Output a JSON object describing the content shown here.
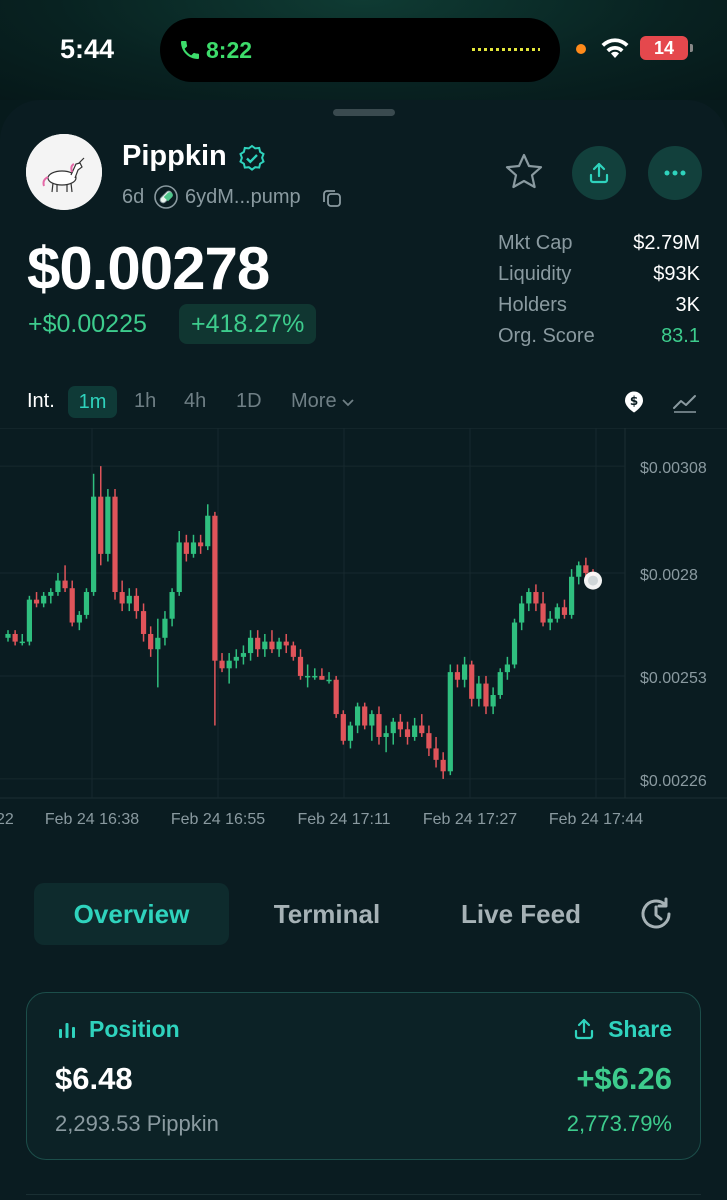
{
  "status_bar": {
    "time": "5:44",
    "call_time": "8:22",
    "battery": "14"
  },
  "token": {
    "name": "Pippkin",
    "age": "6d",
    "address": "6ydM...pump"
  },
  "price": {
    "current": "$0.00278",
    "change_abs": "+$0.00225",
    "change_pct": "+418.27%"
  },
  "stats": [
    {
      "label": "Mkt Cap",
      "value": "$2.79M",
      "highlight": false
    },
    {
      "label": "Liquidity",
      "value": "$93K",
      "highlight": false
    },
    {
      "label": "Holders",
      "value": "3K",
      "highlight": false
    },
    {
      "label": "Org. Score",
      "value": "83.1",
      "highlight": true
    }
  ],
  "intervals": {
    "label": "Int.",
    "options": [
      "1m",
      "1h",
      "4h",
      "1D"
    ],
    "active": "1m",
    "more": "More"
  },
  "chart_data": {
    "type": "candlestick",
    "y_ticks": [
      "$0.00308",
      "$0.0028",
      "$0.00253",
      "$0.00226"
    ],
    "y_tick_values": [
      0.00308,
      0.0028,
      0.00253,
      0.00226
    ],
    "x_ticks": [
      "22",
      "Feb 24 16:38",
      "Feb 24 16:55",
      "Feb 24 17:11",
      "Feb 24 17:27",
      "Feb 24 17:44"
    ],
    "ylim": [
      0.00221,
      0.00318
    ],
    "grid": true,
    "colors": {
      "up": "#2fbf7f",
      "down": "#e0545a"
    },
    "candles": [
      [
        0.00263,
        0.00265,
        0.00262,
        0.00264
      ],
      [
        0.00264,
        0.00265,
        0.00261,
        0.00262
      ],
      [
        0.00262,
        0.00264,
        0.00261,
        0.00262
      ],
      [
        0.00262,
        0.00274,
        0.00261,
        0.00273
      ],
      [
        0.00273,
        0.00275,
        0.00271,
        0.00272
      ],
      [
        0.00272,
        0.00275,
        0.00271,
        0.00274
      ],
      [
        0.00274,
        0.00276,
        0.00272,
        0.00275
      ],
      [
        0.00275,
        0.0028,
        0.00274,
        0.00278
      ],
      [
        0.00278,
        0.00282,
        0.00275,
        0.00276
      ],
      [
        0.00276,
        0.00278,
        0.00266,
        0.00267
      ],
      [
        0.00267,
        0.0027,
        0.00265,
        0.00269
      ],
      [
        0.00269,
        0.00276,
        0.00268,
        0.00275
      ],
      [
        0.00275,
        0.00306,
        0.00274,
        0.003
      ],
      [
        0.003,
        0.00308,
        0.00282,
        0.00285
      ],
      [
        0.00285,
        0.00302,
        0.00283,
        0.003
      ],
      [
        0.003,
        0.00302,
        0.00273,
        0.00275
      ],
      [
        0.00275,
        0.00278,
        0.0027,
        0.00272
      ],
      [
        0.00272,
        0.00276,
        0.0027,
        0.00274
      ],
      [
        0.00274,
        0.00276,
        0.00268,
        0.0027
      ],
      [
        0.0027,
        0.00272,
        0.00262,
        0.00264
      ],
      [
        0.00264,
        0.00266,
        0.00258,
        0.0026
      ],
      [
        0.0026,
        0.00268,
        0.0025,
        0.00263
      ],
      [
        0.00263,
        0.0027,
        0.00261,
        0.00268
      ],
      [
        0.00268,
        0.00276,
        0.00266,
        0.00275
      ],
      [
        0.00275,
        0.00291,
        0.00274,
        0.00288
      ],
      [
        0.00288,
        0.0029,
        0.00283,
        0.00285
      ],
      [
        0.00285,
        0.0029,
        0.00284,
        0.00288
      ],
      [
        0.00288,
        0.0029,
        0.00285,
        0.00287
      ],
      [
        0.00287,
        0.00298,
        0.00286,
        0.00295
      ],
      [
        0.00295,
        0.00296,
        0.0024,
        0.00257
      ],
      [
        0.00257,
        0.00259,
        0.00254,
        0.00255
      ],
      [
        0.00255,
        0.00259,
        0.00251,
        0.00257
      ],
      [
        0.00257,
        0.0026,
        0.00255,
        0.00258
      ],
      [
        0.00258,
        0.00261,
        0.00256,
        0.00259
      ],
      [
        0.00259,
        0.00265,
        0.00257,
        0.00263
      ],
      [
        0.00263,
        0.00265,
        0.00258,
        0.0026
      ],
      [
        0.0026,
        0.00264,
        0.00258,
        0.00262
      ],
      [
        0.00262,
        0.00265,
        0.00259,
        0.0026
      ],
      [
        0.0026,
        0.00263,
        0.00258,
        0.00262
      ],
      [
        0.00262,
        0.00264,
        0.00259,
        0.00261
      ],
      [
        0.00261,
        0.00262,
        0.00257,
        0.00258
      ],
      [
        0.00258,
        0.0026,
        0.00252,
        0.00253
      ],
      [
        0.00253,
        0.00256,
        0.0025,
        0.00253
      ],
      [
        0.00253,
        0.00255,
        0.00252,
        0.00253
      ],
      [
        0.00253,
        0.00255,
        0.00252,
        0.00252
      ],
      [
        0.00252,
        0.00254,
        0.00251,
        0.00252
      ],
      [
        0.00252,
        0.00253,
        0.00242,
        0.00243
      ],
      [
        0.00243,
        0.00244,
        0.00235,
        0.00236
      ],
      [
        0.00236,
        0.00241,
        0.00234,
        0.0024
      ],
      [
        0.0024,
        0.00246,
        0.00238,
        0.00245
      ],
      [
        0.00245,
        0.00246,
        0.00239,
        0.0024
      ],
      [
        0.0024,
        0.00244,
        0.00236,
        0.00243
      ],
      [
        0.00243,
        0.00245,
        0.00235,
        0.00237
      ],
      [
        0.00237,
        0.0024,
        0.00233,
        0.00238
      ],
      [
        0.00238,
        0.00242,
        0.00235,
        0.00241
      ],
      [
        0.00241,
        0.00243,
        0.00237,
        0.00239
      ],
      [
        0.00239,
        0.00241,
        0.00235,
        0.00237
      ],
      [
        0.00237,
        0.00242,
        0.00236,
        0.0024
      ],
      [
        0.0024,
        0.00243,
        0.00237,
        0.00238
      ],
      [
        0.00238,
        0.0024,
        0.00232,
        0.00234
      ],
      [
        0.00234,
        0.00237,
        0.00229,
        0.00231
      ],
      [
        0.00231,
        0.00233,
        0.00226,
        0.00228
      ],
      [
        0.00228,
        0.00256,
        0.00227,
        0.00254
      ],
      [
        0.00254,
        0.00256,
        0.0025,
        0.00252
      ],
      [
        0.00252,
        0.00258,
        0.0025,
        0.00256
      ],
      [
        0.00256,
        0.00257,
        0.00245,
        0.00247
      ],
      [
        0.00247,
        0.00253,
        0.00245,
        0.00251
      ],
      [
        0.00251,
        0.00253,
        0.00243,
        0.00245
      ],
      [
        0.00245,
        0.0025,
        0.00243,
        0.00248
      ],
      [
        0.00248,
        0.00255,
        0.00247,
        0.00254
      ],
      [
        0.00254,
        0.00258,
        0.00252,
        0.00256
      ],
      [
        0.00256,
        0.00268,
        0.00255,
        0.00267
      ],
      [
        0.00267,
        0.00274,
        0.00265,
        0.00272
      ],
      [
        0.00272,
        0.00276,
        0.0027,
        0.00275
      ],
      [
        0.00275,
        0.00277,
        0.0027,
        0.00272
      ],
      [
        0.00272,
        0.00275,
        0.00266,
        0.00267
      ],
      [
        0.00267,
        0.0027,
        0.00265,
        0.00268
      ],
      [
        0.00268,
        0.00272,
        0.00267,
        0.00271
      ],
      [
        0.00271,
        0.00273,
        0.00268,
        0.00269
      ],
      [
        0.00269,
        0.00281,
        0.00268,
        0.00279
      ],
      [
        0.00279,
        0.00283,
        0.00277,
        0.00282
      ],
      [
        0.00282,
        0.00284,
        0.00278,
        0.0028
      ],
      [
        0.0028,
        0.00281,
        0.00277,
        0.00278
      ]
    ],
    "last_price": 0.00278
  },
  "tabs": [
    "Overview",
    "Terminal",
    "Live Feed"
  ],
  "active_tab": "Overview",
  "position": {
    "title": "Position",
    "share": "Share",
    "value": "$6.48",
    "pnl": "+$6.26",
    "amount": "2,293.53 Pippkin",
    "pnl_pct": "2,773.79%"
  },
  "colors": {
    "accent": "#2fd3bd",
    "positive": "#3dcc8d",
    "negative": "#e0545a",
    "background": "#0a1c21"
  }
}
